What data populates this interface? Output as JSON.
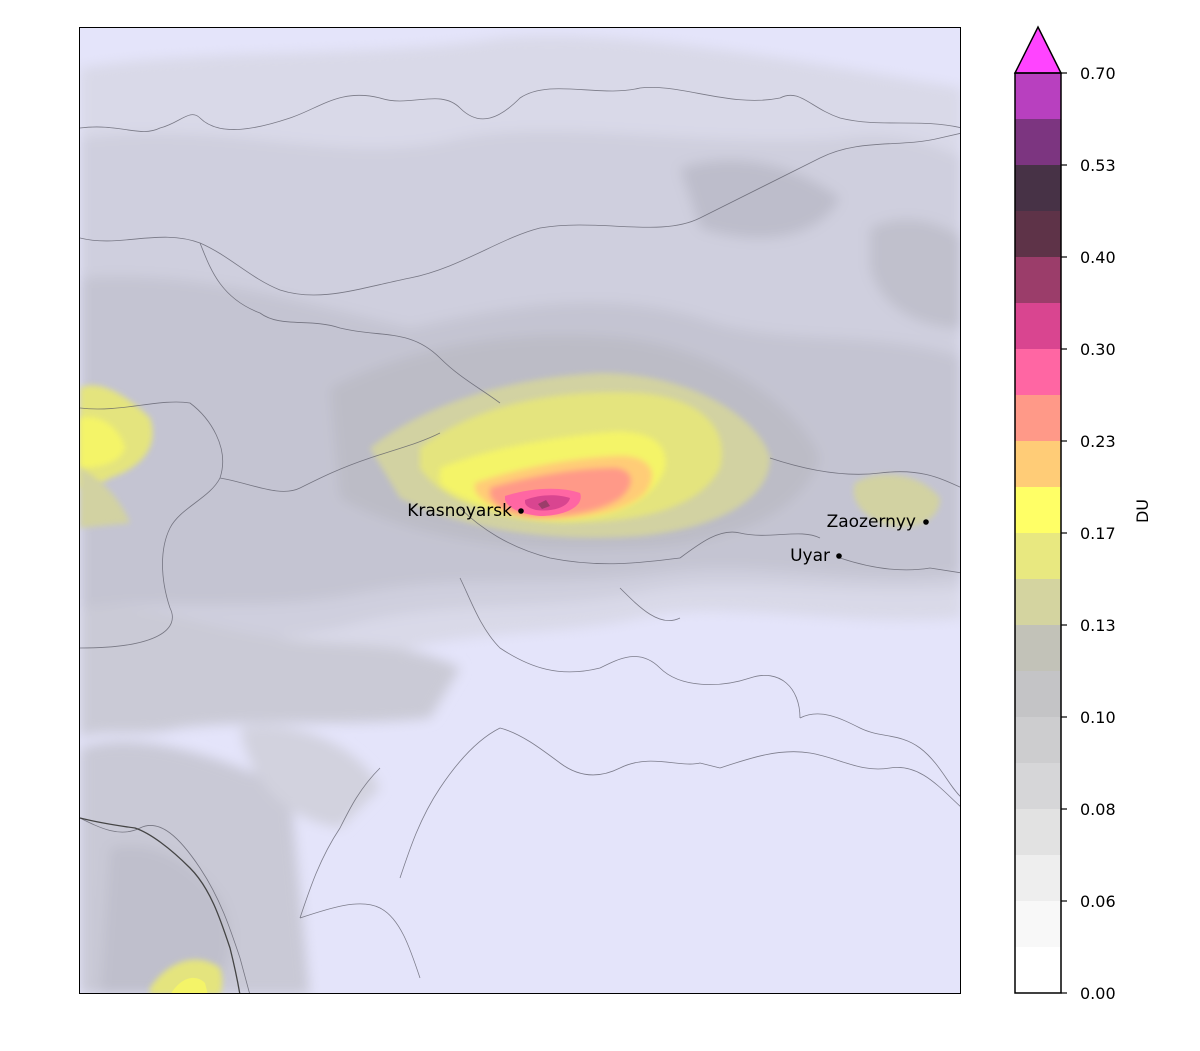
{
  "colorbar": {
    "label": "DU",
    "extend": "max",
    "ticks": [
      "0.70",
      "0.53",
      "0.40",
      "0.30",
      "0.23",
      "0.17",
      "0.13",
      "0.10",
      "0.08",
      "0.06",
      "0.00"
    ],
    "bands": [
      "#ff44ff",
      "#b840bf",
      "#7c3580",
      "#473246",
      "#5e3348",
      "#9b3d6a",
      "#d94590",
      "#ff66a3",
      "#ff9988",
      "#ffcc77",
      "#ffff66",
      "#e8e880",
      "#d4d4a0",
      "#c2c2b8",
      "#c4c4c6",
      "#cdcdcf",
      "#d6d6d8",
      "#e2e2e2",
      "#eeeeee",
      "#f8f8f8",
      "#ffffff"
    ]
  },
  "places": [
    {
      "name": "Krasnoyarsk",
      "anchor": "end"
    },
    {
      "name": "Zaozernyy",
      "anchor": "end"
    },
    {
      "name": "Uyar",
      "anchor": "end"
    }
  ],
  "map": {
    "background_color": "#e4e4fa"
  }
}
